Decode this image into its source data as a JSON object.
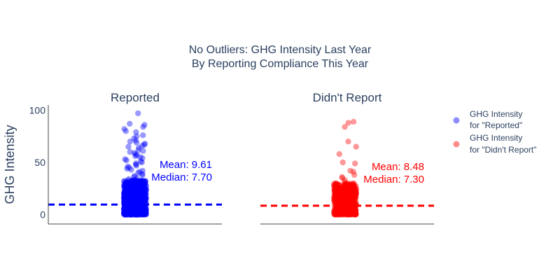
{
  "chart_data": {
    "type": "scatter",
    "title_lines": [
      "No Outliers: GHG Intensity Last Year",
      "By Reporting Compliance This Year"
    ],
    "ylabel": "GHG Intensity",
    "y_ticks": [
      "0",
      "50",
      "100"
    ],
    "ylim": [
      -9,
      105
    ],
    "grid": false,
    "legend_position": "right",
    "panels": [
      {
        "title": "Reported",
        "color": "#0000ff",
        "legend": [
          "GHG Intensity",
          "for \"Reported\""
        ],
        "mean": 9.61,
        "median": 7.7,
        "mean_label": "Mean: 9.61",
        "median_label": "Median: 7.70",
        "outlier_values": [
          97,
          87,
          86,
          84,
          82,
          80,
          79,
          76,
          75,
          73,
          71,
          70,
          69,
          68,
          67,
          66,
          65,
          64,
          62,
          61,
          60,
          59,
          58,
          57,
          56,
          55,
          54,
          53,
          52,
          51,
          50,
          49,
          48,
          47,
          46,
          45,
          44,
          43,
          42,
          41,
          40,
          39,
          38,
          37,
          36,
          35,
          34,
          33,
          32
        ],
        "dense_max": 33
      },
      {
        "title": "Didn't Report",
        "color": "#ff0000",
        "legend": [
          "GHG Intensity",
          "for \"Didn't Report\""
        ],
        "mean": 8.48,
        "median": 7.3,
        "mean_label": "Mean: 8.48",
        "median_label": "Median: 7.30",
        "outlier_values": [
          89,
          88,
          84,
          70,
          65,
          58,
          50,
          49,
          42,
          41,
          38,
          36,
          35,
          33,
          31
        ],
        "dense_max": 30
      }
    ]
  }
}
